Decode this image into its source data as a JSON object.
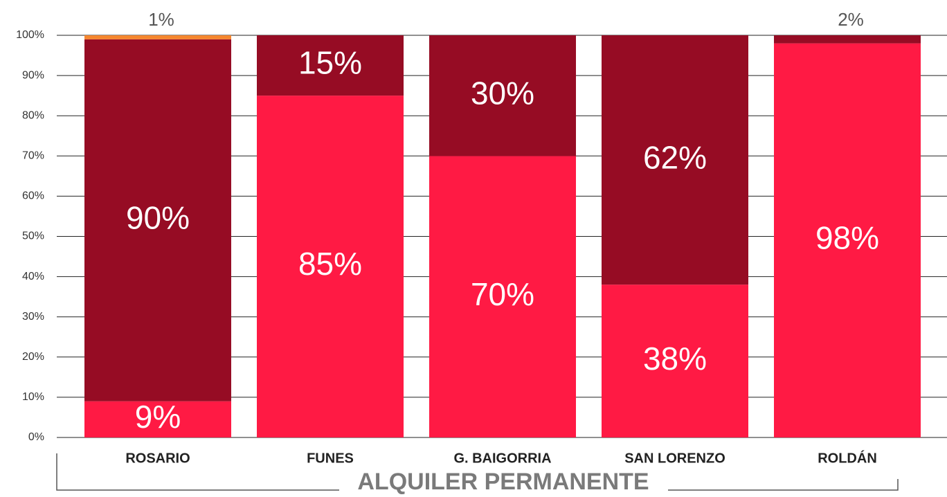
{
  "chart_data": {
    "type": "stacked_bar",
    "categories": [
      "ROSARIO",
      "FUNES",
      "G. BAIGORRIA",
      "SAN LORENZO",
      "ROLDÁN"
    ],
    "xlabel": "ALQUILER PERMANENTE",
    "series": [
      {
        "color": "#ff1a44",
        "values": [
          9,
          85,
          70,
          38,
          98
        ],
        "value_labels": [
          "9%",
          "85%",
          "70%",
          "38%",
          "98%"
        ]
      },
      {
        "color": "#960c24",
        "values": [
          90,
          15,
          30,
          62,
          2
        ],
        "value_labels": [
          "90%",
          "15%",
          "30%",
          "62%",
          "2%"
        ]
      },
      {
        "color": "#f5862e",
        "values": [
          1,
          null,
          null,
          null,
          null
        ],
        "value_labels": [
          "1%",
          null,
          null,
          null,
          null
        ]
      }
    ],
    "ylim": [
      0,
      100
    ],
    "yticks": [
      {
        "value": 0,
        "label": "0%"
      },
      {
        "value": 10,
        "label": "10%"
      },
      {
        "value": 20,
        "label": "20%"
      },
      {
        "value": 30,
        "label": "30%"
      },
      {
        "value": 40,
        "label": "40%"
      },
      {
        "value": 50,
        "label": "50%"
      },
      {
        "value": 60,
        "label": "60%"
      },
      {
        "value": 70,
        "label": "70%"
      },
      {
        "value": 80,
        "label": "80%"
      },
      {
        "value": 90,
        "label": "90%"
      },
      {
        "value": 100,
        "label": "100%"
      }
    ],
    "grid": true
  }
}
